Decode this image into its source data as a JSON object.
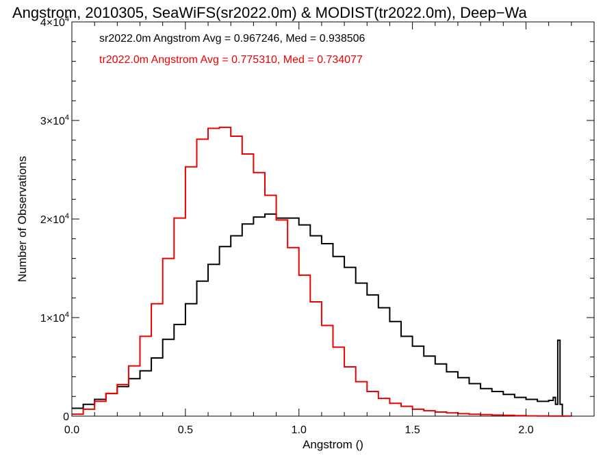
{
  "chart_data": {
    "type": "line",
    "style": "step-histogram",
    "title": "Angstrom, 2010305, SeaWiFS(sr2022.0m) & MODIST(tr2022.0m), Deep−Wa",
    "xlabel": "Angstrom ()",
    "ylabel": "Number of Observations",
    "xlim": [
      0.0,
      2.3
    ],
    "ylim": [
      0,
      40000
    ],
    "x_ticks": [
      0.0,
      0.5,
      1.0,
      1.5,
      2.0
    ],
    "x_tick_labels": [
      "0.0",
      "0.5",
      "1.0",
      "1.5",
      "2.0"
    ],
    "y_ticks": [
      0,
      10000,
      20000,
      30000,
      40000
    ],
    "y_tick_labels": [
      {
        "mant": "0",
        "base": "",
        "exp": ""
      },
      {
        "mant": "1×10",
        "base": "",
        "exp": "4"
      },
      {
        "mant": "2×10",
        "base": "",
        "exp": "4"
      },
      {
        "mant": "3×10",
        "base": "",
        "exp": "4"
      },
      {
        "mant": "4×10",
        "base": "",
        "exp": "4"
      }
    ],
    "grid": false,
    "legend_position": "top-left",
    "annotations": [
      {
        "text": "sr2022.0m Angstrom Avg = 0.967246, Med = 0.938506",
        "color": "#000000"
      },
      {
        "text": "tr2022.0m Angstrom Avg = 0.775310, Med = 0.734077",
        "color": "#ee0000"
      }
    ],
    "series": [
      {
        "color": "#000000",
        "x": [
          0.0,
          0.05,
          0.1,
          0.15,
          0.2,
          0.25,
          0.3,
          0.35,
          0.4,
          0.45,
          0.5,
          0.55,
          0.6,
          0.65,
          0.7,
          0.75,
          0.8,
          0.85,
          0.9,
          0.95,
          1.0,
          1.05,
          1.1,
          1.15,
          1.2,
          1.25,
          1.3,
          1.35,
          1.4,
          1.45,
          1.5,
          1.55,
          1.6,
          1.65,
          1.7,
          1.75,
          1.8,
          1.85,
          1.9,
          1.95,
          2.0,
          2.05,
          2.1,
          2.12,
          2.13,
          2.14,
          2.15,
          2.16,
          2.17
        ],
        "y": [
          800,
          1200,
          1700,
          2300,
          3000,
          3800,
          4600,
          5900,
          7800,
          9300,
          11400,
          13700,
          15400,
          17200,
          18300,
          19500,
          20200,
          20500,
          20100,
          20100,
          19400,
          18300,
          17500,
          16200,
          15100,
          13500,
          12300,
          11000,
          9600,
          8100,
          7100,
          6100,
          5300,
          4500,
          3900,
          3300,
          2800,
          2500,
          2200,
          1900,
          1700,
          1500,
          1600,
          1900,
          1200,
          7700,
          1200,
          0,
          0
        ]
      },
      {
        "color": "#ee0000",
        "x": [
          0.0,
          0.05,
          0.1,
          0.15,
          0.2,
          0.25,
          0.3,
          0.35,
          0.4,
          0.45,
          0.5,
          0.55,
          0.6,
          0.65,
          0.7,
          0.75,
          0.8,
          0.85,
          0.9,
          0.95,
          1.0,
          1.05,
          1.1,
          1.15,
          1.2,
          1.25,
          1.3,
          1.35,
          1.4,
          1.45,
          1.5,
          1.55,
          1.6,
          1.65,
          1.7,
          1.75,
          1.8,
          1.85,
          1.9,
          1.95,
          2.0,
          2.05,
          2.1,
          2.15,
          2.2
        ],
        "y": [
          200,
          700,
          1500,
          2300,
          3200,
          5100,
          8100,
          11400,
          16000,
          20100,
          25300,
          28100,
          29200,
          29300,
          28400,
          26600,
          24700,
          22400,
          19900,
          17100,
          14300,
          11600,
          9200,
          7000,
          5000,
          3500,
          2500,
          1800,
          1300,
          1000,
          700,
          550,
          420,
          330,
          250,
          190,
          150,
          110,
          80,
          50,
          30,
          20,
          10,
          5,
          0
        ]
      }
    ]
  }
}
